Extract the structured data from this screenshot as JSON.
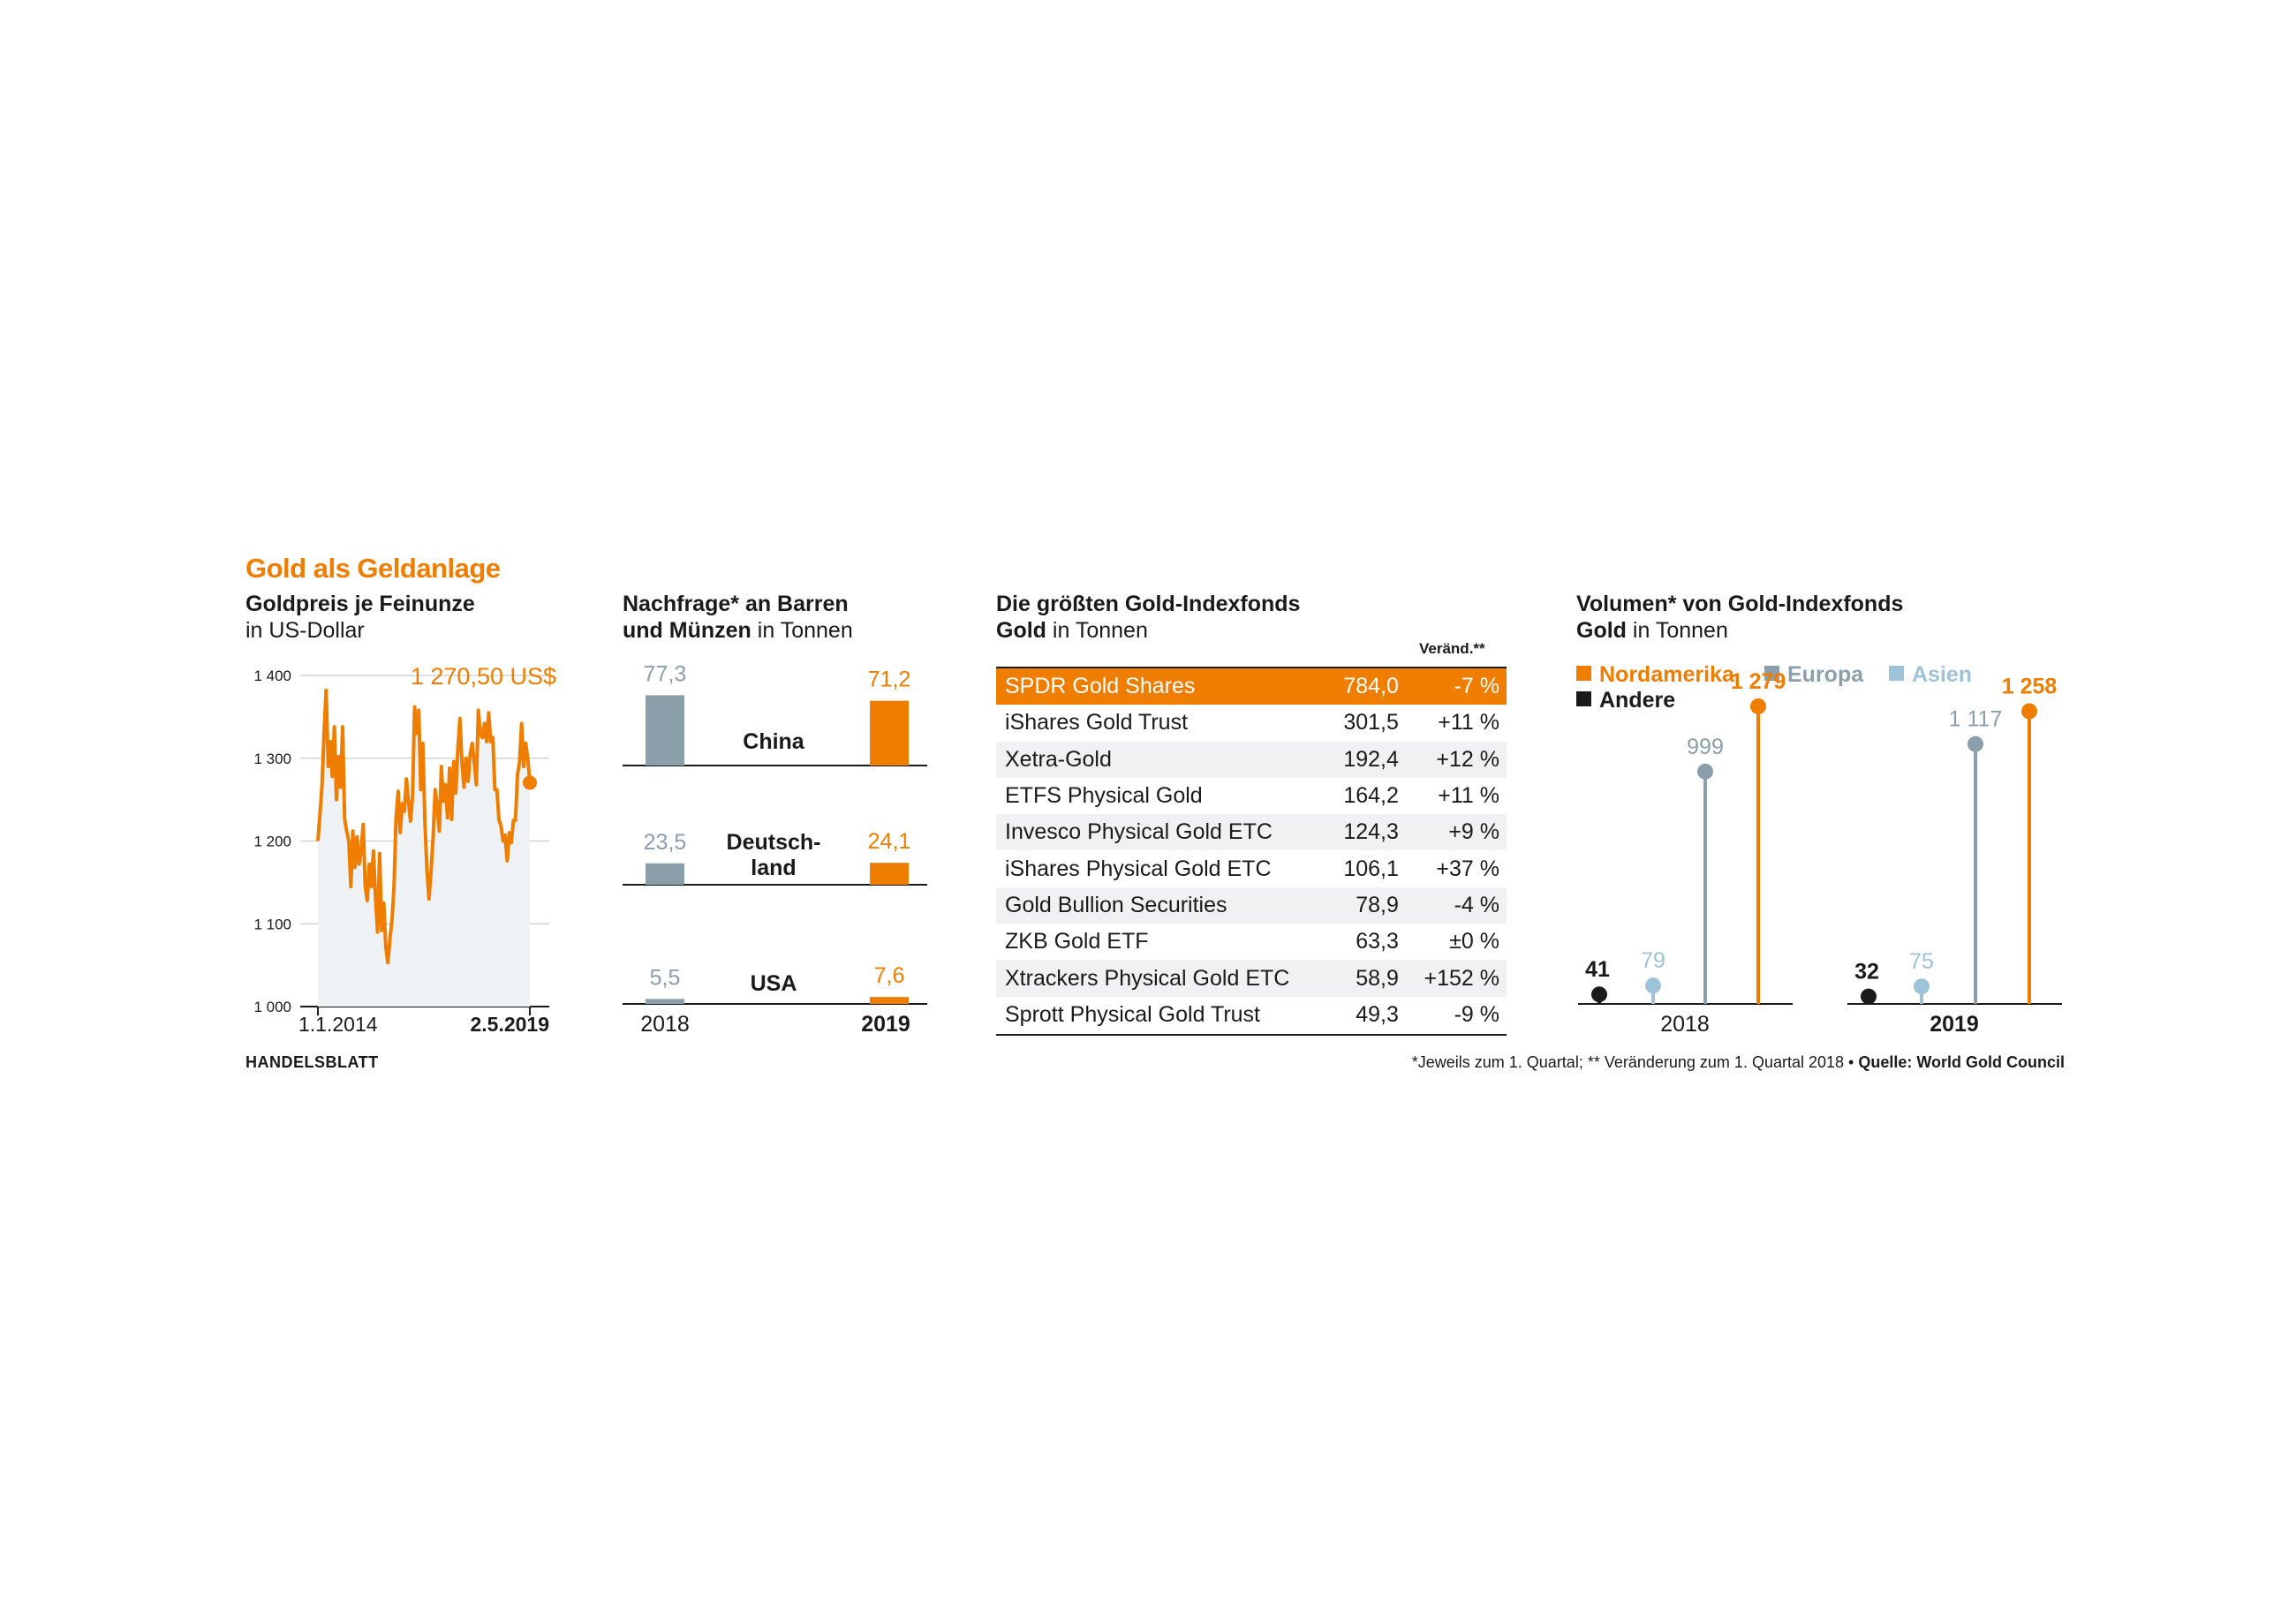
{
  "header": {
    "title": "Gold als Geldanlage",
    "brand": "HANDELSBLATT",
    "footnote": "*Jeweils zum 1. Quartal; ** Veränderung zum 1. Quartal 2018 • ",
    "source": "Quelle: World Gold Council"
  },
  "colors": {
    "orange": "#ef7d00",
    "grey_blue": "#8b9faa",
    "light_blue": "#9ec3d8",
    "black": "#1a1a1a",
    "area_fill": "#eff2f5"
  },
  "chart_data": [
    {
      "type": "line",
      "title": "Goldpreis je Feinunze",
      "subtitle": "in US-Dollar",
      "annotation": "1 270,50 US$",
      "ylim": [
        1000,
        1400
      ],
      "yticks": [
        "1 000",
        "1 100",
        "1 200",
        "1 300",
        "1 400"
      ],
      "xticks": [
        "1.1.2014",
        "2.5.2019"
      ],
      "y": [
        1200,
        1232,
        1268,
        1332,
        1382,
        1290,
        1320,
        1278,
        1338,
        1250,
        1302,
        1265,
        1338,
        1226,
        1212,
        1200,
        1145,
        1212,
        1168,
        1205,
        1172,
        1187,
        1220,
        1145,
        1128,
        1172,
        1145,
        1188,
        1132,
        1090,
        1185,
        1092,
        1125,
        1072,
        1053,
        1082,
        1105,
        1145,
        1228,
        1260,
        1210,
        1245,
        1236,
        1275,
        1248,
        1224,
        1255,
        1362,
        1330,
        1358,
        1262,
        1318,
        1222,
        1165,
        1130,
        1165,
        1205,
        1262,
        1242,
        1212,
        1290,
        1248,
        1268,
        1228,
        1288,
        1226,
        1296,
        1258,
        1310,
        1348,
        1296,
        1265,
        1300,
        1272,
        1305,
        1318,
        1295,
        1268,
        1358,
        1328,
        1325,
        1342,
        1320,
        1355,
        1320,
        1325,
        1262,
        1262,
        1226,
        1218,
        1200,
        1207,
        1176,
        1210,
        1198,
        1225,
        1225,
        1280,
        1295,
        1342,
        1290,
        1318,
        1300,
        1270.5
      ],
      "end_label": "1 270,50"
    },
    {
      "type": "bar",
      "title": "Nachfrage* an Barren",
      "title2": "und Münzen",
      "title2_suffix": " in Tonnen",
      "series": [
        {
          "name": "2018",
          "values": [
            77.3,
            23.5,
            5.5
          ],
          "labels": [
            "77,3",
            "23,5",
            "5,5"
          ]
        },
        {
          "name": "2019",
          "values": [
            71.2,
            24.1,
            7.6
          ],
          "labels": [
            "71,2",
            "24,1",
            "7,6"
          ]
        }
      ],
      "categories": [
        "China",
        "Deutsch-\nland",
        "USA"
      ],
      "xlabels": [
        "2018",
        "2019"
      ]
    },
    {
      "type": "table",
      "title": "Die größten Gold-Indexfonds",
      "subtitle_bold": "Gold",
      "subtitle": " in Tonnen",
      "change_header": "Veränd.**",
      "rows": [
        {
          "name": "SPDR Gold Shares",
          "value": "784,0",
          "change": "-7 %"
        },
        {
          "name": "iShares Gold Trust",
          "value": "301,5",
          "change": "+11 %"
        },
        {
          "name": "Xetra-Gold",
          "value": "192,4",
          "change": "+12 %"
        },
        {
          "name": "ETFS Physical Gold",
          "value": "164,2",
          "change": "+11 %"
        },
        {
          "name": "Invesco Physical Gold ETC",
          "value": "124,3",
          "change": "+9 %"
        },
        {
          "name": "iShares Physical Gold ETC",
          "value": "106,1",
          "change": "+37 %"
        },
        {
          "name": "Gold Bullion Securities",
          "value": "78,9",
          "change": "-4 %"
        },
        {
          "name": "ZKB Gold ETF",
          "value": "63,3",
          "change": "±0 %"
        },
        {
          "name": "Xtrackers Physical Gold ETC",
          "value": "58,9",
          "change": "+152 %"
        },
        {
          "name": "Sprott Physical Gold Trust",
          "value": "49,3",
          "change": "-9 %"
        }
      ]
    },
    {
      "type": "bar",
      "subtype": "lollipop",
      "title": "Volumen* von Gold-Indexfonds",
      "subtitle_bold": "Gold",
      "subtitle": " in Tonnen",
      "legend": [
        "Nordamerika",
        "Europa",
        "Asien",
        "Andere"
      ],
      "categories": [
        "2018",
        "2019"
      ],
      "series": [
        {
          "name": "Andere",
          "values": [
            41,
            32
          ],
          "labels": [
            "41",
            "32"
          ]
        },
        {
          "name": "Asien",
          "values": [
            79,
            75
          ],
          "labels": [
            "79",
            "75"
          ]
        },
        {
          "name": "Europa",
          "values": [
            999,
            1117
          ],
          "labels": [
            "999",
            "1 117"
          ]
        },
        {
          "name": "Nordamerika",
          "values": [
            1279,
            1258
          ],
          "labels": [
            "1 279",
            "1 258"
          ]
        }
      ]
    }
  ]
}
